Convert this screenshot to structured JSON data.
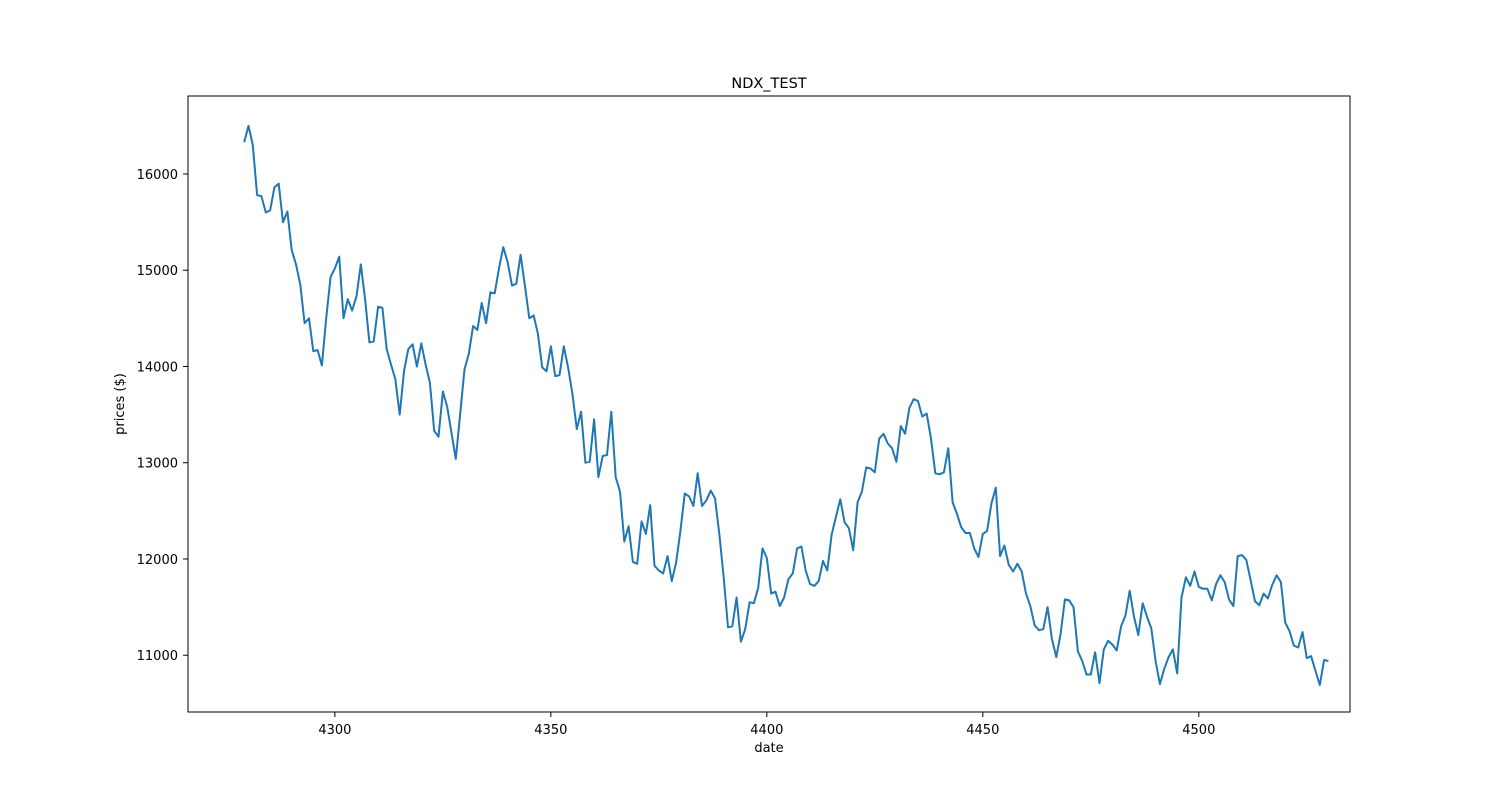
{
  "chart_data": {
    "type": "line",
    "title": "NDX_TEST",
    "xlabel": "date",
    "ylabel": "prices ($)",
    "xlim": [
      4266,
      4535
    ],
    "ylim": [
      10410,
      16810
    ],
    "xticks": [
      4300,
      4350,
      4400,
      4450,
      4500
    ],
    "yticks": [
      11000,
      12000,
      13000,
      14000,
      15000,
      16000
    ],
    "grid": false,
    "legend": "none",
    "line_color": "#1f77b4",
    "series": [
      {
        "x_start": 4279,
        "y": [
          16330,
          16500,
          16300,
          15780,
          15770,
          15600,
          15620,
          15860,
          15900,
          15500,
          15610,
          15210,
          15060,
          14850,
          14450,
          14500,
          14160,
          14170,
          14010,
          14500,
          14930,
          15020,
          15140,
          14500,
          14700,
          14580,
          14730,
          15060,
          14700,
          14250,
          14260,
          14620,
          14610,
          14180,
          14020,
          13870,
          13500,
          13950,
          14180,
          14230,
          14000,
          14240,
          14020,
          13830,
          13330,
          13270,
          13740,
          13580,
          13310,
          13040,
          13500,
          13970,
          14130,
          14420,
          14380,
          14660,
          14450,
          14770,
          14760,
          15020,
          15240,
          15080,
          14840,
          14860,
          15160,
          14840,
          14500,
          14530,
          14340,
          13990,
          13950,
          14210,
          13900,
          13910,
          14210,
          13990,
          13710,
          13350,
          13530,
          13000,
          13010,
          13450,
          12850,
          13070,
          13080,
          13530,
          12850,
          12700,
          12180,
          12340,
          11970,
          11950,
          12390,
          12260,
          12560,
          11930,
          11880,
          11850,
          12030,
          11770,
          11960,
          12290,
          12680,
          12650,
          12550,
          12890,
          12550,
          12610,
          12710,
          12630,
          12260,
          11820,
          11290,
          11300,
          11600,
          11140,
          11270,
          11550,
          11540,
          11700,
          12110,
          12010,
          11640,
          11660,
          11510,
          11600,
          11790,
          11850,
          12110,
          12130,
          11880,
          11740,
          11720,
          11770,
          11980,
          11880,
          12250,
          12440,
          12620,
          12380,
          12320,
          12090,
          12590,
          12700,
          12950,
          12940,
          12900,
          13250,
          13300,
          13200,
          13150,
          13010,
          13380,
          13300,
          13570,
          13660,
          13640,
          13480,
          13510,
          13250,
          12890,
          12880,
          12900,
          13150,
          12590,
          12470,
          12330,
          12270,
          12270,
          12110,
          12020,
          12260,
          12290,
          12580,
          12740,
          12030,
          12140,
          11940,
          11870,
          11950,
          11870,
          11640,
          11510,
          11310,
          11260,
          11270,
          11500,
          11170,
          10980,
          11220,
          11580,
          11570,
          11500,
          11040,
          10940,
          10800,
          10800,
          11030,
          10710,
          11060,
          11150,
          11110,
          11050,
          11300,
          11410,
          11670,
          11400,
          11210,
          11540,
          11400,
          11280,
          10940,
          10700,
          10860,
          10980,
          11060,
          10810,
          11600,
          11810,
          11720,
          11870,
          11710,
          11690,
          11690,
          11570,
          11740,
          11830,
          11760,
          11580,
          11510,
          12030,
          12040,
          11990,
          11780,
          11560,
          11520,
          11640,
          11590,
          11730,
          11830,
          11760,
          11340,
          11250,
          11100,
          11080,
          11240,
          10970,
          10990,
          10840,
          10690,
          10950,
          10940
        ]
      }
    ]
  }
}
